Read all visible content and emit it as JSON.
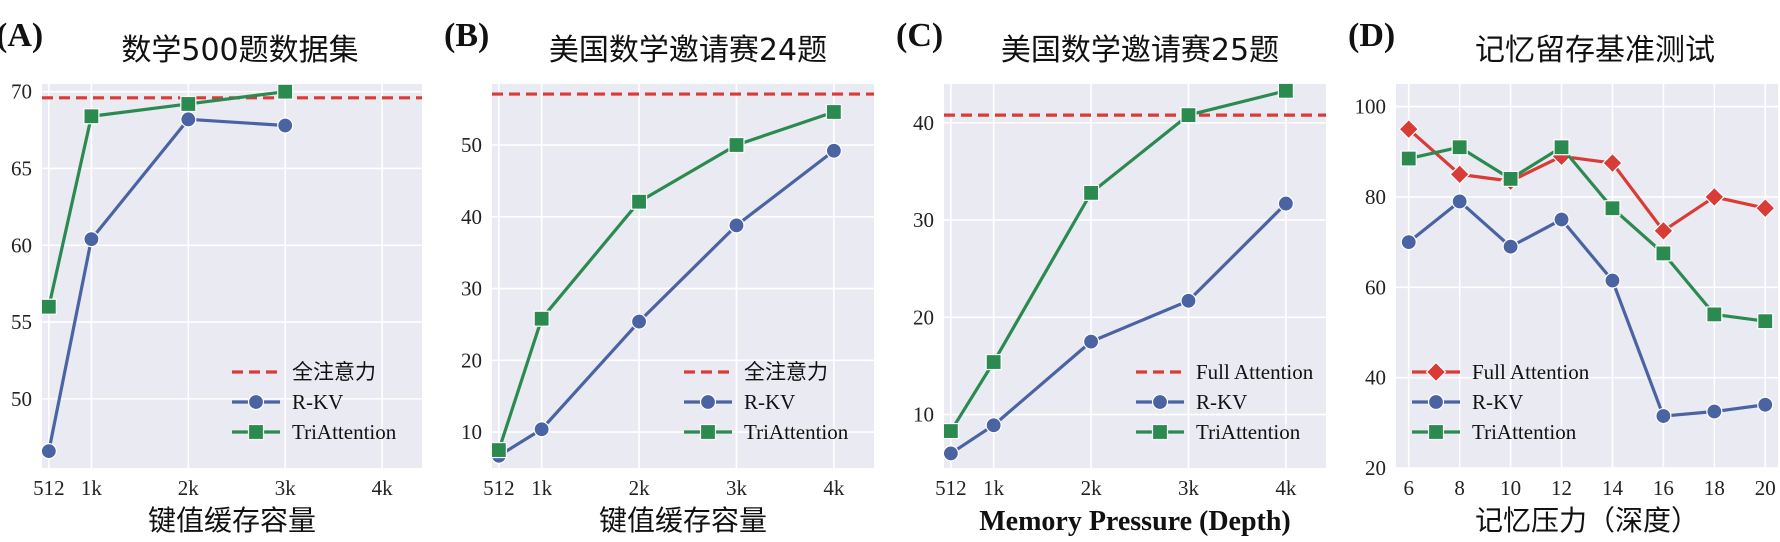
{
  "colors": {
    "full_attention": "#d93b36",
    "rkv": "#4a63a3",
    "triattention": "#2b8a4f",
    "plot_bg": "#eaeaf2",
    "grid": "#ffffff"
  },
  "chart_data": [
    {
      "type": "line",
      "panel": "(A)",
      "title": "数学500题数据集",
      "xlabel": "键值缓存容量",
      "ylabel": "",
      "x_ticks": [
        "512",
        "1k",
        "2k",
        "3k",
        "4k"
      ],
      "x_tick_values": [
        512,
        1024,
        2048,
        3072,
        4096
      ],
      "xlim": [
        512,
        4096
      ],
      "ylim": [
        45.5,
        70.5
      ],
      "y_ticks": [
        50,
        55,
        60,
        65,
        70
      ],
      "reference_line": {
        "name": "全注意力",
        "value": 69.6
      },
      "series": [
        {
          "name": "R-KV",
          "marker": "circle",
          "x": [
            512,
            1024,
            2048,
            3072
          ],
          "values": [
            46.6,
            60.4,
            68.2,
            67.8
          ]
        },
        {
          "name": "TriAttention",
          "marker": "square",
          "x": [
            512,
            1024,
            2048,
            3072
          ],
          "values": [
            56.0,
            68.4,
            69.2,
            70.0
          ]
        }
      ],
      "legend": [
        "全注意力",
        "R-KV",
        "TriAttention"
      ],
      "legend_position": "lower-right"
    },
    {
      "type": "line",
      "panel": "(B)",
      "title": "美国数学邀请赛24题",
      "xlabel": "键值缓存容量",
      "ylabel": "",
      "x_ticks": [
        "512",
        "1k",
        "2k",
        "3k",
        "4k"
      ],
      "x_tick_values": [
        512,
        1024,
        2048,
        3072,
        4096
      ],
      "xlim": [
        512,
        4096
      ],
      "ylim": [
        5,
        58.5
      ],
      "y_ticks": [
        10,
        20,
        30,
        40,
        50
      ],
      "reference_line": {
        "name": "全注意力",
        "value": 57.1
      },
      "series": [
        {
          "name": "R-KV",
          "marker": "circle",
          "x": [
            512,
            1024,
            2048,
            3072,
            4096
          ],
          "values": [
            6.7,
            10.4,
            25.4,
            38.8,
            49.2
          ]
        },
        {
          "name": "TriAttention",
          "marker": "square",
          "x": [
            512,
            1024,
            2048,
            3072,
            4096
          ],
          "values": [
            7.5,
            25.8,
            42.1,
            50.0,
            54.6
          ]
        }
      ],
      "legend": [
        "全注意力",
        "R-KV",
        "TriAttention"
      ],
      "legend_position": "lower-right"
    },
    {
      "type": "line",
      "panel": "(C)",
      "title": "美国数学邀请赛25题",
      "xlabel": "Memory Pressure (Depth)",
      "ylabel": "",
      "x_ticks": [
        "512",
        "1k",
        "2k",
        "3k",
        "4k"
      ],
      "x_tick_values": [
        512,
        1024,
        2048,
        3072,
        4096
      ],
      "xlim": [
        512,
        4096
      ],
      "ylim": [
        4.5,
        44
      ],
      "y_ticks": [
        10,
        20,
        30,
        40
      ],
      "reference_line": {
        "name": "Full Attention",
        "value": 40.8
      },
      "series": [
        {
          "name": "R-KV",
          "marker": "circle",
          "x": [
            512,
            1024,
            2048,
            3072,
            4096
          ],
          "values": [
            6.0,
            8.9,
            17.5,
            21.7,
            31.7
          ]
        },
        {
          "name": "TriAttention",
          "marker": "square",
          "x": [
            512,
            1024,
            2048,
            3072,
            4096
          ],
          "values": [
            8.3,
            15.4,
            32.8,
            40.8,
            43.3
          ]
        }
      ],
      "legend": [
        "Full Attention",
        "R-KV",
        "TriAttention"
      ],
      "legend_position": "lower-right"
    },
    {
      "type": "line",
      "panel": "(D)",
      "title": "记忆留存基准测试",
      "xlabel": "记忆压力（深度）",
      "ylabel": "",
      "x_ticks": [
        "6",
        "8",
        "10",
        "12",
        "14",
        "16",
        "18",
        "20"
      ],
      "x_tick_values": [
        6,
        8,
        10,
        12,
        14,
        16,
        18,
        20
      ],
      "xlim": [
        5.5,
        20.5
      ],
      "ylim": [
        20,
        105
      ],
      "y_ticks": [
        20,
        40,
        60,
        80,
        100
      ],
      "reference_line": null,
      "series": [
        {
          "name": "Full Attention",
          "marker": "diamond",
          "x": [
            6,
            8,
            10,
            12,
            14,
            16,
            18,
            20
          ],
          "values": [
            95.0,
            85.0,
            83.5,
            89.0,
            87.5,
            72.5,
            80.0,
            77.5
          ]
        },
        {
          "name": "R-KV",
          "marker": "circle",
          "x": [
            6,
            8,
            10,
            12,
            14,
            16,
            18,
            20
          ],
          "values": [
            70.0,
            79.0,
            69.0,
            75.0,
            61.5,
            31.5,
            32.5,
            34.0
          ]
        },
        {
          "name": "TriAttention",
          "marker": "square",
          "x": [
            6,
            8,
            10,
            12,
            14,
            16,
            18,
            20
          ],
          "values": [
            88.5,
            91.0,
            84.0,
            91.0,
            77.5,
            67.5,
            54.0,
            52.5
          ]
        }
      ],
      "legend": [
        "Full Attention",
        "R-KV",
        "TriAttention"
      ],
      "legend_position": "lower-left"
    }
  ]
}
